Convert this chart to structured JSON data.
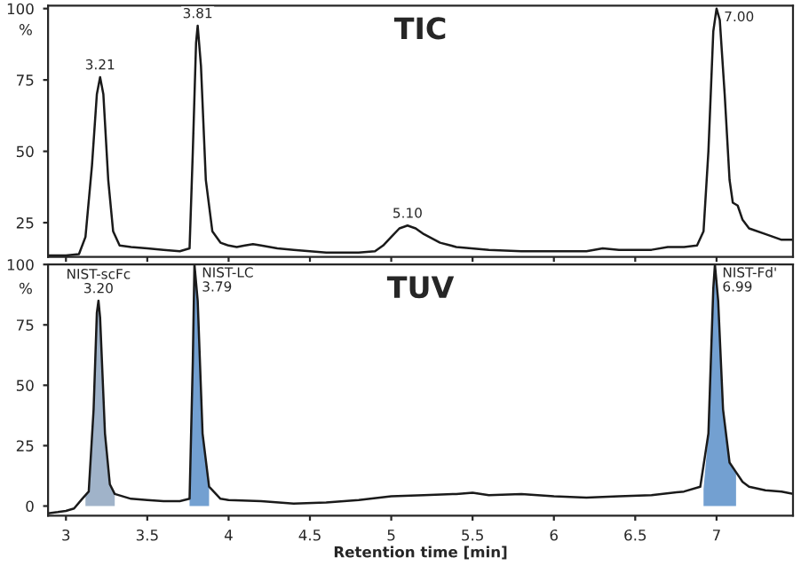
{
  "chart_data": [
    {
      "type": "line",
      "title": "TIC",
      "ylabel": "%",
      "xlim": [
        2.89,
        7.47
      ],
      "xticks": [
        3,
        3.5,
        4,
        4.5,
        5,
        5.5,
        6,
        6.5,
        7
      ],
      "ylim": [
        13,
        101
      ],
      "yticks": [
        25,
        50,
        75,
        100
      ],
      "tick_labels": "y",
      "grid": false,
      "legend": false,
      "series": [
        {
          "color": "#1a1a1a",
          "x": [
            2.89,
            3.0,
            3.08,
            3.12,
            3.16,
            3.19,
            3.21,
            3.23,
            3.26,
            3.29,
            3.33,
            3.4,
            3.5,
            3.6,
            3.7,
            3.76,
            3.78,
            3.8,
            3.81,
            3.83,
            3.86,
            3.9,
            3.95,
            4.0,
            4.05,
            4.1,
            4.15,
            4.2,
            4.3,
            4.4,
            4.5,
            4.6,
            4.8,
            4.9,
            4.95,
            5.0,
            5.05,
            5.1,
            5.15,
            5.2,
            5.3,
            5.4,
            5.6,
            5.8,
            6.0,
            6.2,
            6.3,
            6.4,
            6.6,
            6.7,
            6.8,
            6.88,
            6.92,
            6.95,
            6.98,
            7.0,
            7.02,
            7.05,
            7.08,
            7.1,
            7.13,
            7.16,
            7.2,
            7.3,
            7.4,
            7.47
          ],
          "values": [
            13.5,
            13.5,
            14,
            20,
            45,
            70,
            76,
            70,
            40,
            22,
            17,
            16.5,
            16,
            15.5,
            15,
            16,
            50,
            88,
            94,
            80,
            40,
            22,
            18,
            17,
            16.5,
            17,
            17.5,
            17,
            16,
            15.5,
            15,
            14.5,
            14.5,
            15,
            17,
            20,
            23,
            24,
            23,
            21,
            18,
            16.5,
            15.5,
            15,
            15,
            15,
            16,
            15.5,
            15.5,
            16.5,
            16.5,
            17,
            22,
            50,
            92,
            100,
            96,
            70,
            40,
            32,
            31,
            26,
            23,
            21,
            19,
            19
          ]
        }
      ],
      "annotations": [
        {
          "text": "3.21",
          "x": 3.21,
          "y": 76
        },
        {
          "text": "3.81",
          "x": 3.81,
          "y": 94
        },
        {
          "text": "5.10",
          "x": 5.1,
          "y": 24
        },
        {
          "text": "7.00",
          "x": 7.0,
          "y": 100
        }
      ]
    },
    {
      "type": "line",
      "title": "TUV",
      "ylabel": "%",
      "xlabel": "Retention time [min]",
      "xlim": [
        2.89,
        7.47
      ],
      "xticks": [
        3,
        3.5,
        4,
        4.5,
        5,
        5.5,
        6,
        6.5,
        7
      ],
      "ylim": [
        -4,
        100
      ],
      "yticks": [
        0,
        25,
        50,
        75,
        100
      ],
      "grid": false,
      "legend": false,
      "series": [
        {
          "type": "area",
          "color": "#8fa6c0",
          "x": [
            3.12,
            3.14,
            3.17,
            3.19,
            3.2,
            3.21,
            3.24,
            3.27,
            3.3
          ],
          "values": [
            4,
            6,
            40,
            80,
            85,
            78,
            30,
            9,
            5
          ]
        },
        {
          "type": "area",
          "color": "#5b8fc9",
          "x": [
            3.76,
            3.78,
            3.79,
            3.81,
            3.84,
            3.88
          ],
          "values": [
            3,
            60,
            100,
            85,
            30,
            8
          ]
        },
        {
          "type": "area",
          "color": "#5b8fc9",
          "x": [
            6.92,
            6.95,
            6.98,
            6.99,
            7.01,
            7.04,
            7.08,
            7.12
          ],
          "values": [
            7,
            30,
            90,
            100,
            85,
            40,
            18,
            14
          ]
        },
        {
          "color": "#1a1a1a",
          "x": [
            2.89,
            2.95,
            3.0,
            3.05,
            3.1,
            3.14,
            3.17,
            3.19,
            3.2,
            3.21,
            3.24,
            3.27,
            3.3,
            3.4,
            3.5,
            3.6,
            3.7,
            3.76,
            3.78,
            3.79,
            3.81,
            3.84,
            3.88,
            3.95,
            4.0,
            4.2,
            4.4,
            4.6,
            4.8,
            5.0,
            5.2,
            5.4,
            5.5,
            5.6,
            5.8,
            6.0,
            6.2,
            6.4,
            6.6,
            6.8,
            6.9,
            6.95,
            6.98,
            6.99,
            7.01,
            7.04,
            7.08,
            7.12,
            7.16,
            7.2,
            7.3,
            7.4,
            7.47
          ],
          "values": [
            -3,
            -2.5,
            -2,
            -1,
            3,
            6,
            40,
            80,
            85,
            78,
            30,
            9,
            5,
            3,
            2.5,
            2,
            2,
            3,
            60,
            100,
            85,
            30,
            8,
            3,
            2.5,
            2,
            1,
            1.5,
            2.5,
            4,
            4.5,
            5,
            5.5,
            4.5,
            5,
            4,
            3.5,
            4,
            4.5,
            6,
            8,
            30,
            90,
            100,
            85,
            40,
            18,
            14,
            10,
            8,
            6.5,
            6,
            5
          ]
        }
      ],
      "annotations": [
        {
          "text": "NIST-scFc\n3.20",
          "x": 3.2,
          "y": 85
        },
        {
          "text": "NIST-LC\n3.79",
          "x": 3.79,
          "y": 100
        },
        {
          "text": "NIST-Fd'\n6.99",
          "x": 6.99,
          "y": 100
        }
      ]
    }
  ]
}
